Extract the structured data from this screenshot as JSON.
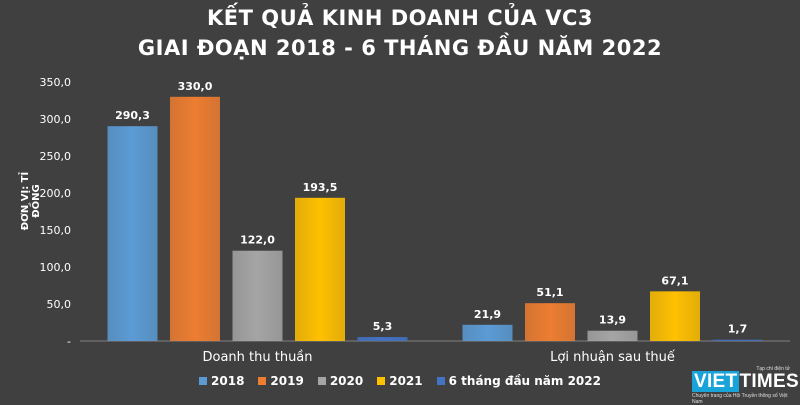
{
  "title_line1": "KẾT QUẢ KINH DOANH CỦA VC3",
  "title_line2": "GIAI ĐOẠN 2018 - 6 THÁNG ĐẦU NĂM 2022",
  "logo": {
    "brand_part1": "VIET",
    "brand_part2": "TIMES",
    "tagline_top": "Tạp chí điện tử",
    "tagline": "Chuyên trang của Hội Truyền thông số Việt Nam"
  },
  "chart_data": {
    "type": "bar",
    "ylabel": "ĐƠN VỊ: TỈ ĐỒNG",
    "xlabel": "",
    "ylim": [
      0,
      350
    ],
    "yticks": [
      "-",
      "50,0",
      "100,0",
      "150,0",
      "200,0",
      "250,0",
      "300,0",
      "350,0"
    ],
    "grid": false,
    "legend_position": "bottom",
    "categories": [
      "Doanh thu thuần",
      "Lợi nhuận sau thuế"
    ],
    "series": [
      {
        "name": "2018",
        "values": [
          290.3,
          21.9
        ],
        "labels": [
          "290,3",
          "21,9"
        ],
        "color": "#5b9bd5"
      },
      {
        "name": "2019",
        "values": [
          330.0,
          51.1
        ],
        "labels": [
          "330,0",
          "51,1"
        ],
        "color": "#ed7d31"
      },
      {
        "name": "2020",
        "values": [
          122.0,
          13.9
        ],
        "labels": [
          "122,0",
          "13,9"
        ],
        "color": "#a5a5a5"
      },
      {
        "name": "2021",
        "values": [
          193.5,
          67.1
        ],
        "labels": [
          "193,5",
          "67,1"
        ],
        "color": "#ffc000"
      },
      {
        "name": "6 tháng đầu năm 2022",
        "values": [
          5.3,
          1.7
        ],
        "labels": [
          "5,3",
          "1,7"
        ],
        "color": "#4472c4"
      }
    ]
  }
}
